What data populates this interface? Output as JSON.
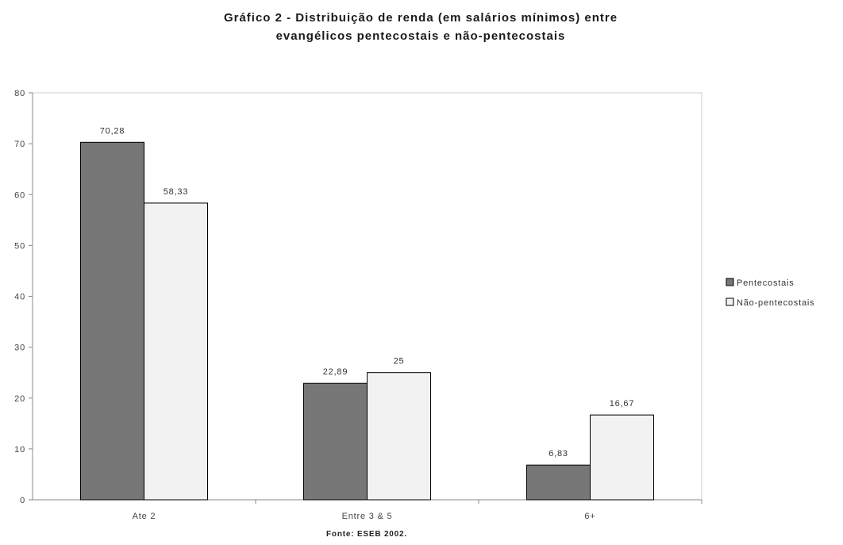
{
  "chart_data": {
    "type": "bar",
    "title_lines": [
      "Gráfico 2 - Distribuição de renda (em salários mínimos) entre",
      "evangélicos pentecostais e não-pentecostais"
    ],
    "categories": [
      "Ate 2",
      "Entre 3 & 5",
      "6+"
    ],
    "series": [
      {
        "name": "Pentecostais",
        "values": [
          70.28,
          22.89,
          6.83
        ],
        "labels": [
          "70,28",
          "22,89",
          "6,83"
        ],
        "color": "#777777"
      },
      {
        "name": "Não-pentecostais",
        "values": [
          58.33,
          25,
          16.67
        ],
        "labels": [
          "58,33",
          "25",
          "16,67"
        ],
        "color": "#f2f2f2"
      }
    ],
    "ylim": [
      0,
      80
    ],
    "yticks": [
      0,
      10,
      20,
      30,
      40,
      50,
      60,
      70,
      80
    ],
    "legend_position": "right",
    "grid": false,
    "source": "Fonte: ESEB 2002."
  }
}
